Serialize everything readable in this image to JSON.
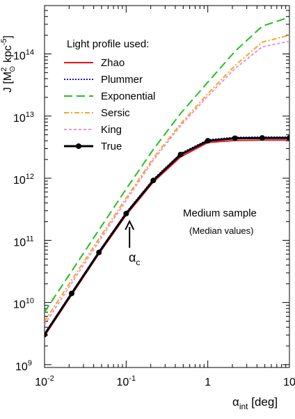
{
  "chart_data": {
    "type": "line",
    "xscale": "log",
    "yscale": "log",
    "xlim": [
      0.01,
      10
    ],
    "ylim": [
      900000000.0,
      600000000000000.0
    ],
    "ylabel": {
      "base": "J [M",
      "sup": "2",
      "sub": "⊙",
      "mid": " kpc",
      "sup2": "-5",
      "end": "]"
    },
    "xlabel": {
      "base": "α",
      "sub": "int",
      "end": "  [deg]"
    },
    "x_ticks": [
      {
        "base": "10",
        "exp": "-2"
      },
      {
        "base": "10",
        "exp": "-1"
      },
      {
        "base": "1",
        "exp": ""
      },
      {
        "base": "10",
        "exp": ""
      }
    ],
    "y_ticks": [
      {
        "base": "10",
        "exp": "9"
      },
      {
        "base": "10",
        "exp": "10"
      },
      {
        "base": "10",
        "exp": "11"
      },
      {
        "base": "10",
        "exp": "12"
      },
      {
        "base": "10",
        "exp": "13"
      },
      {
        "base": "10",
        "exp": "14"
      }
    ],
    "legend_title": "Light profile used:",
    "legend_position": "top-left",
    "series": [
      {
        "name": "Zhao",
        "color": "#e8101e",
        "style": "solid",
        "x": [
          0.01,
          0.0215,
          0.0464,
          0.1,
          0.215,
          0.464,
          1,
          2.15,
          4.64,
          10
        ],
        "y": [
          2900000000.0,
          13300000000.0,
          61000000000.0,
          255000000000.0,
          870000000000.0,
          2200000000000.0,
          3750000000000.0,
          4050000000000.0,
          4100000000000.0,
          4100000000000.0
        ]
      },
      {
        "name": "Plummer",
        "color": "#1010c8",
        "style": "dotted",
        "x": [
          0.01,
          0.0215,
          0.0464,
          0.1,
          0.215,
          0.464,
          1,
          2.15,
          4.64,
          10
        ],
        "y": [
          3150000000.0,
          14400000000.0,
          66000000000.0,
          280000000000.0,
          960000000000.0,
          2500000000000.0,
          4150000000000.0,
          4550000000000.0,
          4600000000000.0,
          4600000000000.0
        ]
      },
      {
        "name": "Exponential",
        "color": "#22c022",
        "style": "longdash",
        "x": [
          0.01,
          0.0215,
          0.0464,
          0.1,
          0.215,
          0.464,
          1,
          2.15,
          4.64,
          10
        ],
        "y": [
          7000000000.0,
          32000000000.0,
          147000000000.0,
          670000000000.0,
          2900000000000.0,
          11000000000000.0,
          35000000000000.0,
          110000000000000.0,
          280000000000000.0,
          390000000000000.0
        ]
      },
      {
        "name": "Sersic",
        "color": "#f5a623",
        "style": "dashdot",
        "x": [
          0.01,
          0.0215,
          0.0464,
          0.1,
          0.215,
          0.464,
          1,
          2.15,
          4.64,
          10
        ],
        "y": [
          5000000000.0,
          23000000000.0,
          106000000000.0,
          480000000000.0,
          2100000000000.0,
          7500000000000.0,
          23000000000000.0,
          65000000000000.0,
          155000000000000.0,
          200000000000000.0
        ]
      },
      {
        "name": "King",
        "color": "#f090d0",
        "style": "shortdash",
        "x": [
          0.01,
          0.0215,
          0.0464,
          0.1,
          0.215,
          0.464,
          1,
          2.15,
          4.64,
          10
        ],
        "y": [
          4400000000.0,
          20500000000.0,
          96000000000.0,
          440000000000.0,
          1950000000000.0,
          7000000000000.0,
          21000000000000.0,
          58000000000000.0,
          130000000000000.0,
          160000000000000.0
        ]
      },
      {
        "name": "True",
        "color": "#000000",
        "style": "solid-markers",
        "x": [
          0.01,
          0.0215,
          0.0464,
          0.1,
          0.215,
          0.464,
          1,
          2.15,
          4.64,
          10
        ],
        "y": [
          3050000000.0,
          14000000000.0,
          64000000000.0,
          270000000000.0,
          920000000000.0,
          2400000000000.0,
          4000000000000.0,
          4400000000000.0,
          4450000000000.0,
          4450000000000.0
        ]
      }
    ],
    "annotations": {
      "sample": "Medium sample",
      "values": "(Median values)",
      "alpha_c_base": "α",
      "alpha_c_sub": "c",
      "alpha_c_x": 0.11
    }
  }
}
